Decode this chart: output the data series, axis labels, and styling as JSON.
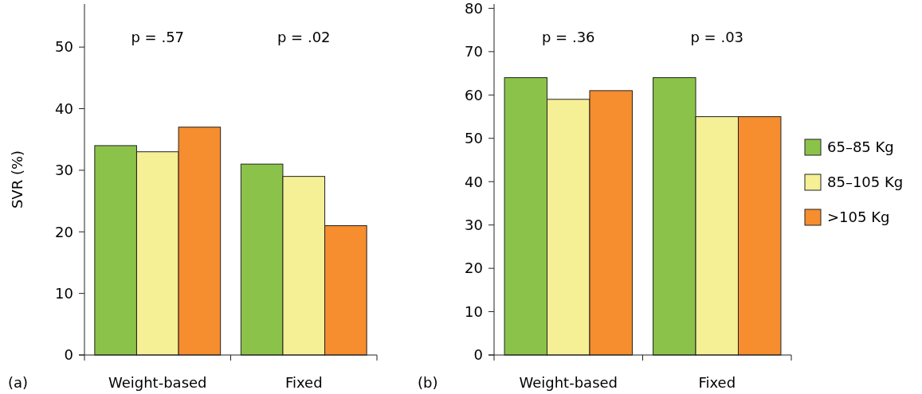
{
  "chart_data": [
    {
      "type": "bar",
      "ylabel": "SVR (%)",
      "categories": [
        "Weight-based",
        "Fixed"
      ],
      "ylim": [
        0,
        57
      ],
      "yticks": [
        0,
        10,
        20,
        30,
        40,
        50
      ],
      "legend": false,
      "grid": false,
      "series": [
        {
          "color": "#8bc34a",
          "values": [
            34,
            31
          ]
        },
        {
          "color": "#f5ef96",
          "values": [
            33,
            29
          ]
        },
        {
          "color": "#f68d2e",
          "values": [
            37,
            21
          ]
        }
      ],
      "annotations": [
        "(a)",
        "p = .57",
        "p = .02"
      ]
    },
    {
      "type": "bar",
      "categories": [
        "Weight-based",
        "Fixed"
      ],
      "ylim": [
        0,
        81
      ],
      "yticks": [
        0,
        10,
        20,
        30,
        40,
        50,
        60,
        70,
        80
      ],
      "legend": "right",
      "grid": false,
      "series": [
        {
          "name": "65–85 Kg",
          "color": "#8bc34a",
          "values": [
            64,
            64
          ]
        },
        {
          "name": "85–105 Kg",
          "color": "#f5ef96",
          "values": [
            59,
            55
          ]
        },
        {
          "name": ">105 Kg",
          "color": "#f68d2e",
          "values": [
            61,
            55
          ]
        }
      ],
      "annotations": [
        "(b)",
        "p = .36",
        "p = .03"
      ]
    }
  ]
}
